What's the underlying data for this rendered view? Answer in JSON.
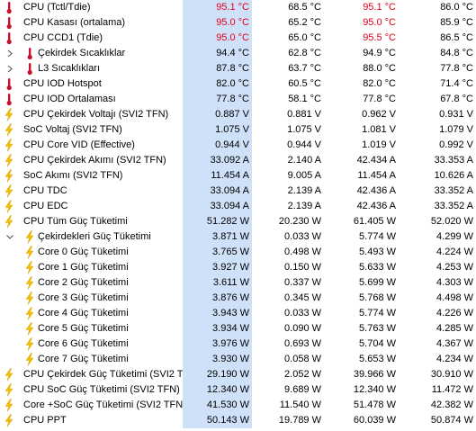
{
  "colors": {
    "highlight_column": "#cfe1f8",
    "alarm_text": "#e2001a",
    "thermometer": "#c8102e",
    "bolt": "#f5c000"
  },
  "rows": [
    {
      "label": "CPU (Tctl/Tdie)",
      "icon": "thermometer-icon",
      "level": 0,
      "current": "95.1 °C",
      "min": "68.5 °C",
      "max": "95.1 °C",
      "avg": "86.0 °C",
      "red": [
        true,
        false,
        true,
        false
      ]
    },
    {
      "label": "CPU Kasası (ortalama)",
      "icon": "thermometer-icon",
      "level": 0,
      "current": "95.0 °C",
      "min": "65.2 °C",
      "max": "95.0 °C",
      "avg": "85.9 °C",
      "red": [
        true,
        false,
        true,
        false
      ]
    },
    {
      "label": "CPU CCD1 (Tdie)",
      "icon": "thermometer-icon",
      "level": 0,
      "current": "95.0 °C",
      "min": "65.0 °C",
      "max": "95.5 °C",
      "avg": "86.5 °C",
      "red": [
        true,
        false,
        true,
        false
      ]
    },
    {
      "label": "Çekirdek Sıcaklıklar",
      "icon": "thermometer-icon",
      "level": 1,
      "expander": "collapsed",
      "current": "94.4 °C",
      "min": "62.8 °C",
      "max": "94.9 °C",
      "avg": "84.8 °C",
      "red": [
        false,
        false,
        false,
        false
      ]
    },
    {
      "label": "L3 Sıcaklıkları",
      "icon": "thermometer-icon",
      "level": 1,
      "expander": "collapsed",
      "current": "87.8 °C",
      "min": "63.7 °C",
      "max": "88.0 °C",
      "avg": "77.8 °C",
      "red": [
        false,
        false,
        false,
        false
      ]
    },
    {
      "label": "CPU IOD Hotspot",
      "icon": "thermometer-icon",
      "level": 0,
      "current": "82.0 °C",
      "min": "60.5 °C",
      "max": "82.0 °C",
      "avg": "71.4 °C",
      "red": [
        false,
        false,
        false,
        false
      ]
    },
    {
      "label": "CPU IOD Ortalaması",
      "icon": "thermometer-icon",
      "level": 0,
      "current": "77.8 °C",
      "min": "58.1 °C",
      "max": "77.8 °C",
      "avg": "67.8 °C",
      "red": [
        false,
        false,
        false,
        false
      ]
    },
    {
      "label": "CPU Çekirdek Voltajı (SVI2 TFN)",
      "icon": "lightning-bolt-icon",
      "level": 0,
      "current": "0.887 V",
      "min": "0.881 V",
      "max": "0.962 V",
      "avg": "0.931 V",
      "red": [
        false,
        false,
        false,
        false
      ]
    },
    {
      "label": "SoC Voltaj (SVI2 TFN)",
      "icon": "lightning-bolt-icon",
      "level": 0,
      "current": "1.075 V",
      "min": "1.075 V",
      "max": "1.081 V",
      "avg": "1.079 V",
      "red": [
        false,
        false,
        false,
        false
      ]
    },
    {
      "label": "CPU Core VID (Effective)",
      "icon": "lightning-bolt-icon",
      "level": 0,
      "current": "0.944 V",
      "min": "0.944 V",
      "max": "1.019 V",
      "avg": "0.992 V",
      "red": [
        false,
        false,
        false,
        false
      ]
    },
    {
      "label": "CPU Çekirdek Akımı (SVI2 TFN)",
      "icon": "lightning-bolt-icon",
      "level": 0,
      "current": "33.092 A",
      "min": "2.140 A",
      "max": "42.434 A",
      "avg": "33.353 A",
      "red": [
        false,
        false,
        false,
        false
      ]
    },
    {
      "label": "SoC Akımı (SVI2 TFN)",
      "icon": "lightning-bolt-icon",
      "level": 0,
      "current": "11.454 A",
      "min": "9.005 A",
      "max": "11.454 A",
      "avg": "10.626 A",
      "red": [
        false,
        false,
        false,
        false
      ]
    },
    {
      "label": "CPU TDC",
      "icon": "lightning-bolt-icon",
      "level": 0,
      "current": "33.094 A",
      "min": "2.139 A",
      "max": "42.436 A",
      "avg": "33.352 A",
      "red": [
        false,
        false,
        false,
        false
      ]
    },
    {
      "label": "CPU EDC",
      "icon": "lightning-bolt-icon",
      "level": 0,
      "current": "33.094 A",
      "min": "2.139 A",
      "max": "42.436 A",
      "avg": "33.352 A",
      "red": [
        false,
        false,
        false,
        false
      ]
    },
    {
      "label": "CPU Tüm Güç Tüketimi",
      "icon": "lightning-bolt-icon",
      "level": 0,
      "current": "51.282 W",
      "min": "20.230 W",
      "max": "61.405 W",
      "avg": "52.020 W",
      "red": [
        false,
        false,
        false,
        false
      ]
    },
    {
      "label": "Çekirdekleri Güç Tüketimi",
      "icon": "lightning-bolt-icon",
      "level": 1,
      "expander": "expanded",
      "current": "3.871 W",
      "min": "0.033 W",
      "max": "5.774 W",
      "avg": "4.299 W",
      "red": [
        false,
        false,
        false,
        false
      ]
    },
    {
      "label": "Core 0 Güç Tüketimi",
      "icon": "lightning-bolt-icon",
      "level": 2,
      "current": "3.765 W",
      "min": "0.498 W",
      "max": "5.493 W",
      "avg": "4.224 W",
      "red": [
        false,
        false,
        false,
        false
      ]
    },
    {
      "label": "Core 1 Güç Tüketimi",
      "icon": "lightning-bolt-icon",
      "level": 2,
      "current": "3.927 W",
      "min": "0.150 W",
      "max": "5.633 W",
      "avg": "4.253 W",
      "red": [
        false,
        false,
        false,
        false
      ]
    },
    {
      "label": "Core 2 Güç Tüketimi",
      "icon": "lightning-bolt-icon",
      "level": 2,
      "current": "3.611 W",
      "min": "0.337 W",
      "max": "5.699 W",
      "avg": "4.303 W",
      "red": [
        false,
        false,
        false,
        false
      ]
    },
    {
      "label": "Core 3 Güç Tüketimi",
      "icon": "lightning-bolt-icon",
      "level": 2,
      "current": "3.876 W",
      "min": "0.345 W",
      "max": "5.768 W",
      "avg": "4.498 W",
      "red": [
        false,
        false,
        false,
        false
      ]
    },
    {
      "label": "Core 4 Güç Tüketimi",
      "icon": "lightning-bolt-icon",
      "level": 2,
      "current": "3.943 W",
      "min": "0.033 W",
      "max": "5.774 W",
      "avg": "4.226 W",
      "red": [
        false,
        false,
        false,
        false
      ]
    },
    {
      "label": "Core 5 Güç Tüketimi",
      "icon": "lightning-bolt-icon",
      "level": 2,
      "current": "3.934 W",
      "min": "0.090 W",
      "max": "5.763 W",
      "avg": "4.285 W",
      "red": [
        false,
        false,
        false,
        false
      ]
    },
    {
      "label": "Core 6 Güç Tüketimi",
      "icon": "lightning-bolt-icon",
      "level": 2,
      "current": "3.976 W",
      "min": "0.693 W",
      "max": "5.704 W",
      "avg": "4.367 W",
      "red": [
        false,
        false,
        false,
        false
      ]
    },
    {
      "label": "Core 7 Güç Tüketimi",
      "icon": "lightning-bolt-icon",
      "level": 2,
      "current": "3.930 W",
      "min": "0.058 W",
      "max": "5.653 W",
      "avg": "4.234 W",
      "red": [
        false,
        false,
        false,
        false
      ]
    },
    {
      "label": "CPU Çekirdek Güç Tüketimi (SVI2 TFN)",
      "icon": "lightning-bolt-icon",
      "level": 0,
      "current": "29.190 W",
      "min": "2.052 W",
      "max": "39.966 W",
      "avg": "30.910 W",
      "red": [
        false,
        false,
        false,
        false
      ]
    },
    {
      "label": "CPU SoC Güç Tüketimi (SVI2 TFN)",
      "icon": "lightning-bolt-icon",
      "level": 0,
      "current": "12.340 W",
      "min": "9.689 W",
      "max": "12.340 W",
      "avg": "11.472 W",
      "red": [
        false,
        false,
        false,
        false
      ]
    },
    {
      "label": "Core +SoC Güç Tüketimi (SVI2 TFN)",
      "icon": "lightning-bolt-icon",
      "level": 0,
      "current": "41.530 W",
      "min": "11.540 W",
      "max": "51.478 W",
      "avg": "42.382 W",
      "red": [
        false,
        false,
        false,
        false
      ]
    },
    {
      "label": "CPU PPT",
      "icon": "lightning-bolt-icon",
      "level": 0,
      "current": "50.143 W",
      "min": "19.789 W",
      "max": "60.039 W",
      "avg": "50.874 W",
      "red": [
        false,
        false,
        false,
        false
      ]
    }
  ]
}
